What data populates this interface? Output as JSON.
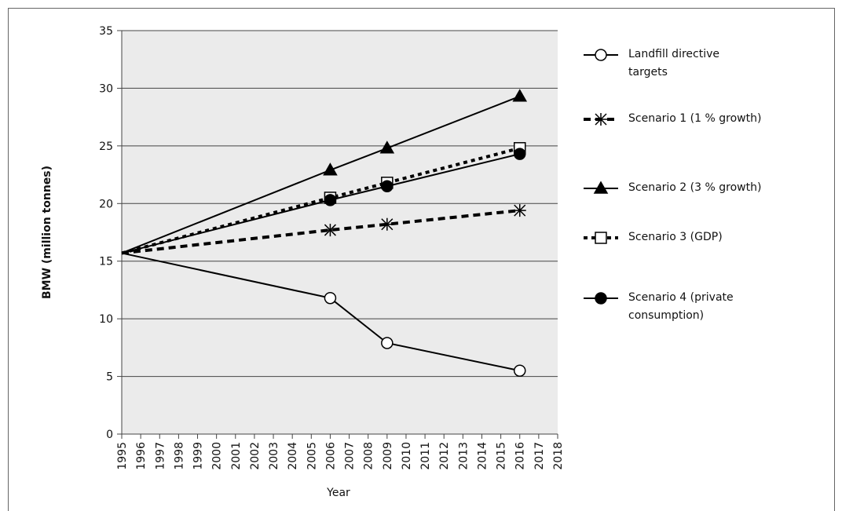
{
  "chart_data": {
    "type": "line",
    "x_label": "Year",
    "y_label": "BMW (million tonnes)",
    "x": [
      1995,
      2006,
      2009,
      2016
    ],
    "xlim": [
      1995,
      2018
    ],
    "xticks": [
      1995,
      1996,
      1997,
      1998,
      1999,
      2000,
      2001,
      2002,
      2003,
      2004,
      2005,
      2006,
      2007,
      2008,
      2009,
      2010,
      2011,
      2012,
      2013,
      2014,
      2015,
      2016,
      2017,
      2018
    ],
    "ylim": [
      0,
      35
    ],
    "yticks": [
      0,
      5,
      10,
      15,
      20,
      25,
      30,
      35
    ],
    "grid": true,
    "series": [
      {
        "name": "Landfill directive targets",
        "color": "#000000",
        "dash": "solid",
        "marker": "circle-open",
        "values": [
          15.7,
          11.8,
          7.9,
          5.5
        ]
      },
      {
        "name": "Scenario 1 (1 % growth)",
        "color": "#000000",
        "dash": "dashed",
        "marker": "asterisk",
        "values": [
          15.7,
          17.7,
          18.2,
          19.4
        ]
      },
      {
        "name": "Scenario 2 (3 % growth)",
        "color": "#000000",
        "dash": "solid",
        "marker": "triangle",
        "values": [
          15.7,
          22.9,
          24.8,
          29.3
        ]
      },
      {
        "name": "Scenario 3 (GDP)",
        "color": "#000000",
        "dash": "dotted",
        "marker": "square-open",
        "values": [
          15.7,
          20.5,
          21.8,
          24.8
        ]
      },
      {
        "name": "Scenario 4 (private consumption)",
        "color": "#000000",
        "dash": "solid",
        "marker": "circle",
        "values": [
          15.7,
          20.3,
          21.5,
          24.3
        ]
      }
    ]
  }
}
